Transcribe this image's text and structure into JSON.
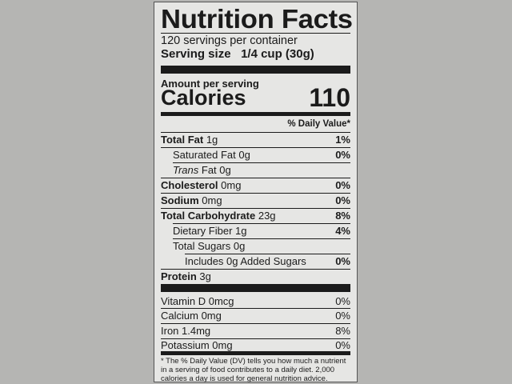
{
  "title": "Nutrition Facts",
  "servings_per_container": "120 servings per container",
  "serving_size_label": "Serving size",
  "serving_size_value": "1/4 cup (30g)",
  "amount_per_serving": "Amount per serving",
  "calories_label": "Calories",
  "calories_value": "110",
  "daily_value_header": "% Daily Value*",
  "nutrients": [
    {
      "name": "Total Fat",
      "amount": "1g",
      "dv": "1%"
    },
    {
      "name": "Saturated Fat",
      "amount": "0g",
      "dv": "0%"
    },
    {
      "name": "Trans",
      "amount": "Fat 0g",
      "dv": ""
    },
    {
      "name": "Cholesterol",
      "amount": "0mg",
      "dv": "0%"
    },
    {
      "name": "Sodium",
      "amount": "0mg",
      "dv": "0%"
    },
    {
      "name": "Total Carbohydrate",
      "amount": "23g",
      "dv": "8%"
    },
    {
      "name": "Dietary Fiber",
      "amount": "1g",
      "dv": "4%"
    },
    {
      "name": "Total Sugars",
      "amount": "0g",
      "dv": ""
    },
    {
      "name": "Includes 0g Added Sugars",
      "amount": "",
      "dv": "0%"
    },
    {
      "name": "Protein",
      "amount": "3g",
      "dv": ""
    }
  ],
  "vitamins": [
    {
      "name": "Vitamin D 0mcg",
      "dv": "0%"
    },
    {
      "name": "Calcium 0mg",
      "dv": "0%"
    },
    {
      "name": "Iron 1.4mg",
      "dv": "8%"
    },
    {
      "name": "Potassium 0mg",
      "dv": "0%"
    }
  ],
  "footnote": "* The % Daily Value (DV) tells you how much a nutrient in a serving of food contributes to a daily diet. 2,000 calories a day is used for general nutrition advice."
}
